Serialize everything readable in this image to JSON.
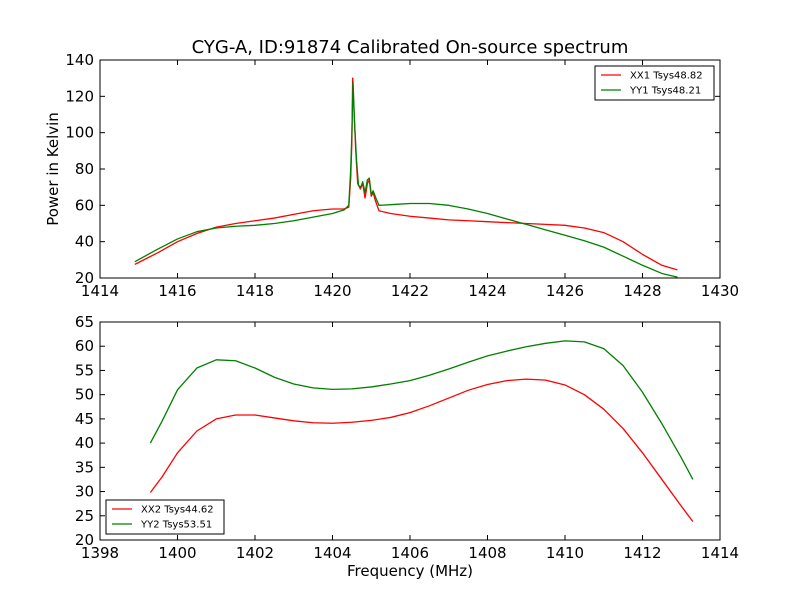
{
  "title": "CYG-A, ID:91874 Calibrated On-source spectrum",
  "chart_data": [
    {
      "type": "line",
      "xlabel": "",
      "ylabel": "Power in Kelvin",
      "xlim": [
        1414,
        1430
      ],
      "ylim": [
        20,
        140
      ],
      "xticks": [
        1414,
        1416,
        1418,
        1420,
        1422,
        1424,
        1426,
        1428,
        1430
      ],
      "yticks": [
        20,
        40,
        60,
        80,
        100,
        120,
        140
      ],
      "legend_position": "top-right",
      "series": [
        {
          "name": "XX1 Tsys48.82",
          "color": "#ff0000",
          "points": [
            [
              1414.9,
              27.5
            ],
            [
              1415.5,
              34
            ],
            [
              1416.0,
              40
            ],
            [
              1416.5,
              44.5
            ],
            [
              1417.0,
              48
            ],
            [
              1417.5,
              50
            ],
            [
              1418.0,
              51.5
            ],
            [
              1418.5,
              53
            ],
            [
              1419.0,
              55
            ],
            [
              1419.5,
              57
            ],
            [
              1420.0,
              58
            ],
            [
              1420.3,
              58
            ],
            [
              1420.42,
              59
            ],
            [
              1420.47,
              75
            ],
            [
              1420.5,
              95
            ],
            [
              1420.52,
              130
            ],
            [
              1420.56,
              110
            ],
            [
              1420.6,
              90
            ],
            [
              1420.65,
              72
            ],
            [
              1420.72,
              69
            ],
            [
              1420.78,
              72
            ],
            [
              1420.84,
              64
            ],
            [
              1420.9,
              72
            ],
            [
              1420.95,
              74
            ],
            [
              1421.0,
              65
            ],
            [
              1421.05,
              67
            ],
            [
              1421.1,
              63
            ],
            [
              1421.2,
              57
            ],
            [
              1421.5,
              55.5
            ],
            [
              1422.0,
              54
            ],
            [
              1422.5,
              53
            ],
            [
              1423.0,
              52
            ],
            [
              1423.5,
              51.5
            ],
            [
              1424.0,
              51
            ],
            [
              1424.5,
              50.5
            ],
            [
              1425.0,
              50
            ],
            [
              1425.5,
              49.5
            ],
            [
              1426.0,
              49
            ],
            [
              1426.5,
              47.5
            ],
            [
              1427.0,
              45
            ],
            [
              1427.5,
              40
            ],
            [
              1428.0,
              33
            ],
            [
              1428.5,
              27
            ],
            [
              1428.9,
              24.5
            ]
          ]
        },
        {
          "name": "YY1 Tsys48.21",
          "color": "#008000",
          "points": [
            [
              1414.9,
              29
            ],
            [
              1415.5,
              36
            ],
            [
              1416.0,
              41.5
            ],
            [
              1416.5,
              45.5
            ],
            [
              1417.0,
              47.5
            ],
            [
              1417.5,
              48.5
            ],
            [
              1418.0,
              49
            ],
            [
              1418.5,
              50
            ],
            [
              1419.0,
              51.5
            ],
            [
              1419.5,
              53.5
            ],
            [
              1420.0,
              55.5
            ],
            [
              1420.3,
              57.5
            ],
            [
              1420.42,
              60
            ],
            [
              1420.47,
              80
            ],
            [
              1420.5,
              100
            ],
            [
              1420.53,
              128
            ],
            [
              1420.57,
              105
            ],
            [
              1420.62,
              85
            ],
            [
              1420.67,
              71
            ],
            [
              1420.73,
              70
            ],
            [
              1420.78,
              73
            ],
            [
              1420.84,
              67
            ],
            [
              1420.9,
              74
            ],
            [
              1420.95,
              75
            ],
            [
              1421.0,
              66
            ],
            [
              1421.05,
              68
            ],
            [
              1421.12,
              64
            ],
            [
              1421.2,
              60
            ],
            [
              1421.6,
              60.5
            ],
            [
              1422.0,
              61
            ],
            [
              1422.5,
              61
            ],
            [
              1423.0,
              60
            ],
            [
              1423.5,
              58
            ],
            [
              1424.0,
              55.5
            ],
            [
              1424.5,
              52.5
            ],
            [
              1425.0,
              49.5
            ],
            [
              1425.5,
              46.5
            ],
            [
              1426.0,
              43.5
            ],
            [
              1426.5,
              40.5
            ],
            [
              1427.0,
              37
            ],
            [
              1427.5,
              32
            ],
            [
              1428.0,
              27
            ],
            [
              1428.5,
              22.5
            ],
            [
              1428.9,
              20.5
            ]
          ]
        }
      ]
    },
    {
      "type": "line",
      "xlabel": "Frequency (MHz)",
      "ylabel": "",
      "xlim": [
        1398,
        1414
      ],
      "ylim": [
        20,
        65
      ],
      "xticks": [
        1398,
        1400,
        1402,
        1404,
        1406,
        1408,
        1410,
        1412,
        1414
      ],
      "yticks": [
        20,
        25,
        30,
        35,
        40,
        45,
        50,
        55,
        60,
        65
      ],
      "legend_position": "bottom-left",
      "series": [
        {
          "name": "XX2 Tsys44.62",
          "color": "#ff0000",
          "points": [
            [
              1399.3,
              29.8
            ],
            [
              1399.6,
              33
            ],
            [
              1400.0,
              38
            ],
            [
              1400.5,
              42.5
            ],
            [
              1401.0,
              45
            ],
            [
              1401.5,
              45.8
            ],
            [
              1402.0,
              45.8
            ],
            [
              1402.5,
              45.2
            ],
            [
              1403.0,
              44.6
            ],
            [
              1403.5,
              44.2
            ],
            [
              1404.0,
              44.1
            ],
            [
              1404.5,
              44.3
            ],
            [
              1405.0,
              44.7
            ],
            [
              1405.5,
              45.3
            ],
            [
              1406.0,
              46.3
            ],
            [
              1406.5,
              47.7
            ],
            [
              1407.0,
              49.3
            ],
            [
              1407.5,
              50.9
            ],
            [
              1408.0,
              52.1
            ],
            [
              1408.5,
              52.9
            ],
            [
              1409.0,
              53.2
            ],
            [
              1409.5,
              53
            ],
            [
              1410.0,
              52
            ],
            [
              1410.5,
              50
            ],
            [
              1411.0,
              47
            ],
            [
              1411.5,
              43
            ],
            [
              1412.0,
              38
            ],
            [
              1412.5,
              32.5
            ],
            [
              1413.0,
              27
            ],
            [
              1413.3,
              23.8
            ]
          ]
        },
        {
          "name": "YY2 Tsys53.51",
          "color": "#008000",
          "points": [
            [
              1399.3,
              40
            ],
            [
              1399.6,
              44.5
            ],
            [
              1400.0,
              51
            ],
            [
              1400.5,
              55.5
            ],
            [
              1401.0,
              57.2
            ],
            [
              1401.5,
              57
            ],
            [
              1402.0,
              55.5
            ],
            [
              1402.5,
              53.6
            ],
            [
              1403.0,
              52.2
            ],
            [
              1403.5,
              51.4
            ],
            [
              1404.0,
              51.1
            ],
            [
              1404.5,
              51.2
            ],
            [
              1405.0,
              51.6
            ],
            [
              1405.5,
              52.2
            ],
            [
              1406.0,
              52.9
            ],
            [
              1406.5,
              54
            ],
            [
              1407.0,
              55.3
            ],
            [
              1407.5,
              56.7
            ],
            [
              1408.0,
              58
            ],
            [
              1408.5,
              59
            ],
            [
              1409.0,
              59.9
            ],
            [
              1409.5,
              60.6
            ],
            [
              1410.0,
              61.1
            ],
            [
              1410.5,
              60.9
            ],
            [
              1411.0,
              59.5
            ],
            [
              1411.5,
              56
            ],
            [
              1412.0,
              50.5
            ],
            [
              1412.5,
              44
            ],
            [
              1413.0,
              37
            ],
            [
              1413.3,
              32.5
            ]
          ]
        }
      ]
    }
  ]
}
